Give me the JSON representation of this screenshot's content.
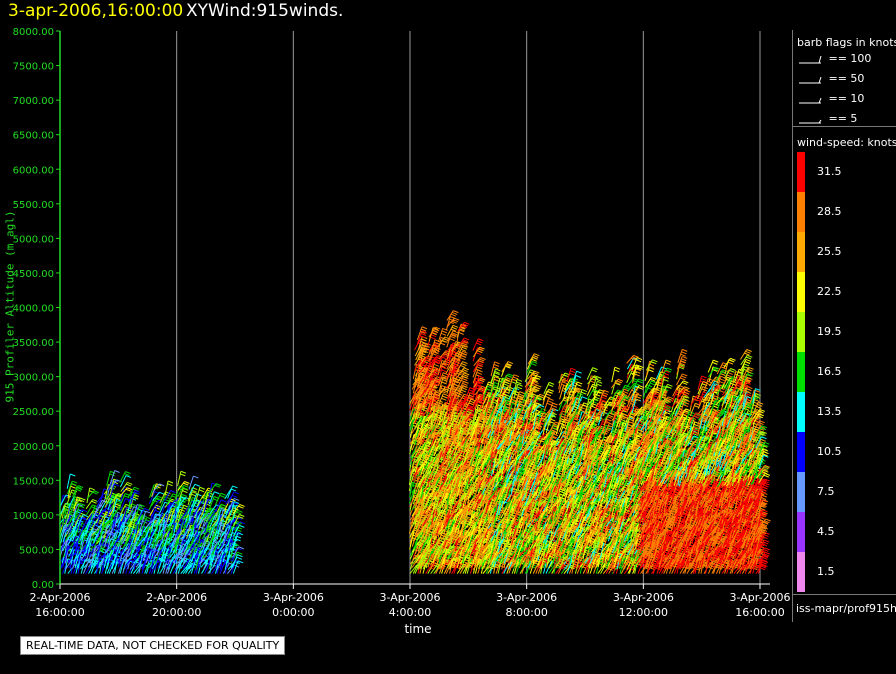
{
  "header": {
    "date": "3-apr-2006,16:00:00",
    "title": "XYWind:915winds."
  },
  "notice": "REAL-TIME DATA, NOT CHECKED FOR QUALITY",
  "source": "iss-mapr/prof915h",
  "legend": {
    "barb_title": "barb flags in knots",
    "barbs": [
      "== 100",
      "== 50",
      "== 10",
      "== 5"
    ],
    "speed_title": "wind-speed: knots",
    "speed_bins": [
      {
        "label": "31.5",
        "color": "#ff0000"
      },
      {
        "label": "28.5",
        "color": "#ff7f00"
      },
      {
        "label": "25.5",
        "color": "#ffaa00"
      },
      {
        "label": "22.5",
        "color": "#ffff00"
      },
      {
        "label": "19.5",
        "color": "#aaff00"
      },
      {
        "label": "16.5",
        "color": "#00dd00"
      },
      {
        "label": "13.5",
        "color": "#00ffff"
      },
      {
        "label": "10.5",
        "color": "#0000ff"
      },
      {
        "label": "7.5",
        "color": "#6699ff"
      },
      {
        "label": "4.5",
        "color": "#9933ff"
      },
      {
        "label": "1.5",
        "color": "#ee88ee"
      }
    ]
  },
  "chart_data": {
    "type": "scatter",
    "xlabel": "time",
    "ylabel": "915 Profiler Altitude (m agl)",
    "x_ticks": [
      "2-Apr-2006\n16:00:00",
      "2-Apr-2006\n20:00:00",
      "3-Apr-2006\n0:00:00",
      "3-Apr-2006\n4:00:00",
      "3-Apr-2006\n8:00:00",
      "3-Apr-2006\n12:00:00",
      "3-Apr-2006\n16:00:00"
    ],
    "x_range_hours": [
      0,
      24
    ],
    "y_ticks": [
      "0.00",
      "500.00",
      "1000.00",
      "1500.00",
      "2000.00",
      "2500.00",
      "3000.00",
      "3500.00",
      "4000.00",
      "4500.00",
      "5000.00",
      "5500.00",
      "6000.00",
      "6500.00",
      "7000.00",
      "7500.00",
      "8000.00"
    ],
    "ylim": [
      0,
      8000
    ],
    "grid": "vertical",
    "segments": [
      {
        "t_start": 0.0,
        "t_end": 6.0,
        "alt_min": 150,
        "alt_max": 1500,
        "dominant_speed": [
          7.5,
          19.5
        ]
      },
      {
        "t_start": 12.0,
        "t_end": 14.5,
        "alt_min": 150,
        "alt_max": 4000,
        "dominant_speed": [
          16.5,
          31.5
        ]
      },
      {
        "t_start": 14.5,
        "t_end": 24.0,
        "alt_min": 150,
        "alt_max": 3300,
        "dominant_speed": [
          13.5,
          31.5
        ]
      }
    ]
  }
}
